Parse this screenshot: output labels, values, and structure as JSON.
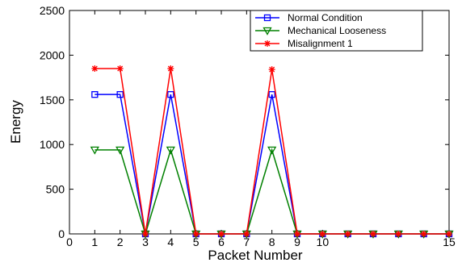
{
  "chart_data": {
    "type": "line",
    "title": "",
    "xlabel": "Packet Number",
    "ylabel": "Energy",
    "xlim": [
      0,
      15
    ],
    "ylim": [
      0,
      2500
    ],
    "xticks": [
      0,
      1,
      2,
      3,
      4,
      5,
      6,
      7,
      8,
      9,
      10,
      15
    ],
    "yticks": [
      0,
      500,
      1000,
      1500,
      2000,
      2500
    ],
    "grid": false,
    "legend_position": "top-right",
    "x": [
      1,
      2,
      3,
      4,
      5,
      6,
      7,
      8,
      9,
      10,
      11,
      12,
      13,
      14,
      15
    ],
    "series": [
      {
        "name": "Normal Condition",
        "color": "#0000ff",
        "marker": "square",
        "values": [
          1560,
          1560,
          0,
          1560,
          0,
          0,
          0,
          1560,
          0,
          0,
          0,
          0,
          0,
          0,
          0
        ]
      },
      {
        "name": "Mechanical Looseness",
        "color": "#008000",
        "marker": "triangle-down",
        "values": [
          940,
          940,
          0,
          940,
          0,
          0,
          0,
          940,
          0,
          0,
          0,
          0,
          0,
          0,
          0
        ]
      },
      {
        "name": "Misalignment 1",
        "color": "#ff0000",
        "marker": "star",
        "values": [
          1850,
          1850,
          0,
          1850,
          0,
          0,
          0,
          1840,
          0,
          0,
          0,
          0,
          0,
          0,
          0
        ]
      }
    ]
  }
}
